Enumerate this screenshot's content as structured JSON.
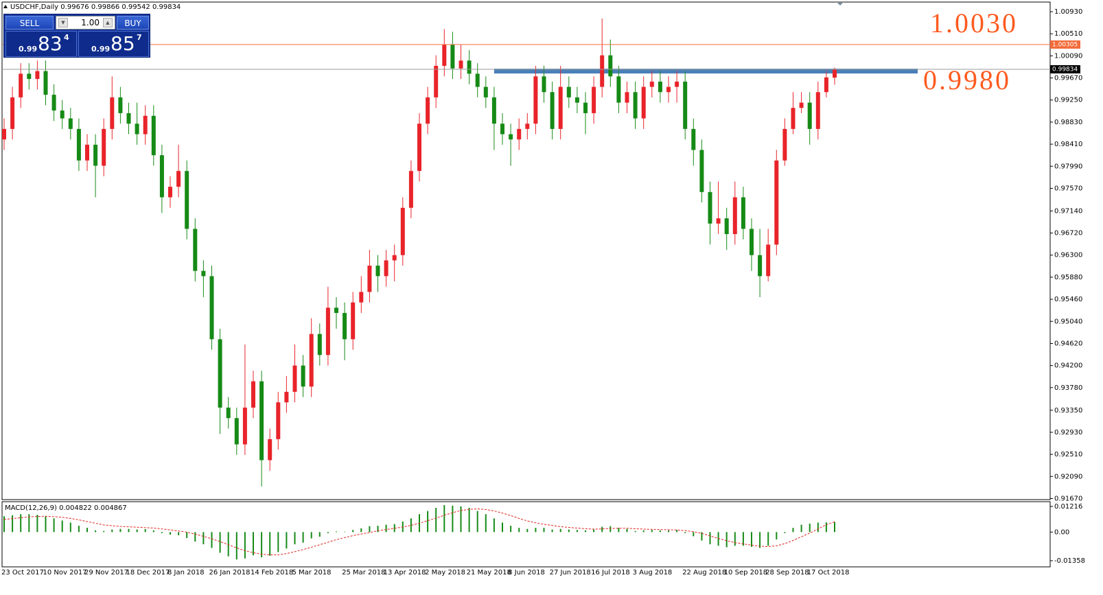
{
  "chart_data": {
    "type": "candlestick",
    "title": "USDCHF,Daily",
    "categories": [
      "23 Oct 2017",
      null,
      null,
      null,
      null,
      "10 Nov 2017",
      null,
      null,
      null,
      null,
      "29 Nov 2017",
      null,
      null,
      null,
      null,
      "18 Dec 2017",
      null,
      null,
      null,
      null,
      "8 Jan 2018",
      null,
      null,
      null,
      null,
      "26 Jan 2018",
      null,
      null,
      null,
      null,
      "14 Feb 2018",
      null,
      null,
      null,
      null,
      "5 Mar 2018",
      null,
      null,
      null,
      null,
      null,
      "25 Mar 2018",
      null,
      null,
      null,
      null,
      "13 Apr 2018",
      null,
      null,
      null,
      null,
      "2 May 2018",
      null,
      null,
      null,
      null,
      "21 May 2018",
      null,
      null,
      null,
      null,
      "8 Jun 2018",
      null,
      null,
      null,
      null,
      "27 Jun 2018",
      null,
      null,
      null,
      null,
      "16 Jul 2018",
      null,
      null,
      null,
      null,
      "3 Aug 2018",
      null,
      null,
      null,
      null,
      null,
      "22 Aug 2018",
      null,
      null,
      null,
      null,
      "10 Sep 2018",
      null,
      null,
      null,
      null,
      "28 Sep 2018",
      null,
      null,
      null,
      null,
      "17 Oct 2018",
      null,
      null,
      null
    ],
    "open": [
      0.985,
      0.987,
      0.993,
      0.9975,
      0.9965,
      0.998,
      0.9935,
      0.9905,
      0.989,
      0.987,
      0.981,
      0.984,
      0.98,
      0.987,
      0.993,
      0.99,
      0.988,
      0.986,
      0.9895,
      0.982,
      0.974,
      0.976,
      0.979,
      0.968,
      0.96,
      0.959,
      0.947,
      0.934,
      0.932,
      0.927,
      0.934,
      0.939,
      0.924,
      0.928,
      0.935,
      0.937,
      0.942,
      0.938,
      0.948,
      0.944,
      0.953,
      0.952,
      0.947,
      0.954,
      0.956,
      0.961,
      0.959,
      0.962,
      0.963,
      0.972,
      0.979,
      0.988,
      0.993,
      0.999,
      1.003,
      0.9985,
      1.0,
      0.9975,
      0.995,
      0.993,
      0.988,
      0.986,
      0.985,
      0.987,
      0.988,
      0.997,
      0.994,
      0.987,
      0.995,
      0.993,
      0.992,
      0.99,
      0.995,
      1.001,
      0.997,
      0.992,
      0.994,
      0.989,
      0.995,
      0.996,
      0.994,
      0.995,
      0.996,
      0.987,
      0.983,
      0.975,
      0.969,
      0.97,
      0.967,
      0.974,
      0.968,
      0.963,
      0.959,
      0.965,
      0.981,
      0.987,
      0.991,
      0.992,
      0.987,
      0.994,
      0.99676
    ],
    "high": [
      0.989,
      0.995,
      0.9995,
      0.9995,
      1.0,
      1.0,
      0.9955,
      0.9925,
      0.991,
      0.989,
      0.986,
      0.986,
      0.989,
      0.997,
      0.995,
      0.992,
      0.992,
      0.9915,
      0.9915,
      0.984,
      0.978,
      0.984,
      0.981,
      0.97,
      0.962,
      0.961,
      0.949,
      0.936,
      0.934,
      0.946,
      0.941,
      0.941,
      0.93,
      0.937,
      0.94,
      0.946,
      0.944,
      0.951,
      0.95,
      0.957,
      0.955,
      0.954,
      0.956,
      0.959,
      0.964,
      0.963,
      0.964,
      0.965,
      0.974,
      0.981,
      0.99,
      0.995,
      1.001,
      1.006,
      1.0055,
      1.003,
      1.002,
      0.9995,
      0.997,
      0.995,
      0.99,
      0.988,
      0.989,
      0.99,
      0.999,
      0.999,
      0.996,
      0.999,
      0.997,
      0.995,
      0.994,
      0.997,
      1.008,
      1.004,
      0.999,
      0.996,
      0.996,
      0.997,
      0.998,
      0.998,
      0.997,
      0.998,
      0.998,
      0.989,
      0.985,
      0.977,
      0.977,
      0.972,
      0.977,
      0.976,
      0.97,
      0.968,
      0.968,
      0.983,
      0.989,
      0.994,
      0.994,
      0.994,
      0.996,
      0.998,
      0.99866
    ],
    "low": [
      0.983,
      0.985,
      0.991,
      0.9945,
      0.9945,
      0.9915,
      0.9885,
      0.987,
      0.985,
      0.979,
      0.979,
      0.974,
      0.978,
      0.985,
      0.988,
      0.986,
      0.984,
      0.984,
      0.98,
      0.971,
      0.972,
      0.974,
      0.966,
      0.958,
      0.955,
      0.945,
      0.929,
      0.93,
      0.925,
      0.925,
      0.932,
      0.919,
      0.922,
      0.926,
      0.933,
      0.935,
      0.936,
      0.936,
      0.942,
      0.942,
      0.949,
      0.943,
      0.945,
      0.952,
      0.954,
      0.956,
      0.957,
      0.958,
      0.961,
      0.97,
      0.977,
      0.986,
      0.991,
      0.997,
      0.9965,
      0.9965,
      0.9955,
      0.993,
      0.991,
      0.983,
      0.984,
      0.98,
      0.983,
      0.985,
      0.986,
      0.992,
      0.985,
      0.985,
      0.991,
      0.99,
      0.986,
      0.988,
      0.993,
      0.995,
      0.99,
      0.99,
      0.987,
      0.987,
      0.993,
      0.992,
      0.992,
      0.992,
      0.985,
      0.98,
      0.973,
      0.965,
      0.967,
      0.964,
      0.965,
      0.966,
      0.96,
      0.955,
      0.958,
      0.963,
      0.98,
      0.986,
      0.99,
      0.984,
      0.985,
      0.993,
      0.99542
    ],
    "close": [
      0.987,
      0.993,
      0.9975,
      0.9965,
      0.998,
      0.9935,
      0.9905,
      0.989,
      0.987,
      0.981,
      0.984,
      0.98,
      0.987,
      0.993,
      0.99,
      0.988,
      0.986,
      0.9895,
      0.982,
      0.974,
      0.976,
      0.979,
      0.968,
      0.96,
      0.959,
      0.947,
      0.934,
      0.932,
      0.927,
      0.934,
      0.939,
      0.924,
      0.928,
      0.935,
      0.937,
      0.942,
      0.938,
      0.948,
      0.944,
      0.953,
      0.952,
      0.947,
      0.954,
      0.956,
      0.961,
      0.959,
      0.962,
      0.963,
      0.972,
      0.979,
      0.988,
      0.993,
      0.999,
      1.003,
      0.9985,
      1.0,
      0.9975,
      0.995,
      0.993,
      0.988,
      0.986,
      0.985,
      0.987,
      0.988,
      0.997,
      0.994,
      0.987,
      0.995,
      0.993,
      0.992,
      0.99,
      0.995,
      1.001,
      0.997,
      0.992,
      0.994,
      0.989,
      0.995,
      0.996,
      0.994,
      0.995,
      0.996,
      0.987,
      0.983,
      0.975,
      0.969,
      0.97,
      0.967,
      0.974,
      0.968,
      0.963,
      0.959,
      0.965,
      0.981,
      0.987,
      0.991,
      0.992,
      0.987,
      0.994,
      0.9968,
      0.99834
    ],
    "up_color": "#e8242a",
    "down_color": "#168a16",
    "ylim": [
      0.9165,
      1.011
    ],
    "yticks": [
      {
        "value": 1.0093,
        "label": "1.00930"
      },
      {
        "value": 1.0051,
        "label": "1.00510"
      },
      {
        "value": 1.0009,
        "label": "1.00090"
      },
      {
        "value": 0.9967,
        "label": "0.99670"
      },
      {
        "value": 0.9925,
        "label": "0.99250"
      },
      {
        "value": 0.9883,
        "label": "0.98830"
      },
      {
        "value": 0.9841,
        "label": "0.98410"
      },
      {
        "value": 0.9799,
        "label": "0.97990"
      },
      {
        "value": 0.9757,
        "label": "0.97570"
      },
      {
        "value": 0.9714,
        "label": "0.97140"
      },
      {
        "value": 0.9672,
        "label": "0.96720"
      },
      {
        "value": 0.963,
        "label": "0.96300"
      },
      {
        "value": 0.9588,
        "label": "0.95880"
      },
      {
        "value": 0.9546,
        "label": "0.95460"
      },
      {
        "value": 0.9504,
        "label": "0.95040"
      },
      {
        "value": 0.9462,
        "label": "0.94620"
      },
      {
        "value": 0.942,
        "label": "0.94200"
      },
      {
        "value": 0.9378,
        "label": "0.93780"
      },
      {
        "value": 0.9335,
        "label": "0.93350"
      },
      {
        "value": 0.9293,
        "label": "0.92930"
      },
      {
        "value": 0.9251,
        "label": "0.92510"
      },
      {
        "value": 0.9209,
        "label": "0.92090"
      },
      {
        "value": 0.9167,
        "label": "0.91670"
      }
    ],
    "levels": [
      {
        "value": 1.00305,
        "color": "#f26b3a"
      }
    ],
    "bid_line_color": "#9a9a9a",
    "resistance": {
      "value": 0.998,
      "x_range": [
        59,
        110
      ],
      "color": "#4a80b8"
    },
    "annotations": [
      "1.0030",
      "0.9980"
    ],
    "macd": {
      "title": "MACD(12,26,9)",
      "histogram": [
        0.0075,
        0.008,
        0.0085,
        0.0085,
        0.0082,
        0.0075,
        0.0065,
        0.0055,
        0.0045,
        0.003,
        0.002,
        0.0008,
        0.0005,
        0.0012,
        0.0015,
        0.0015,
        0.0012,
        0.0014,
        0.0008,
        -0.0005,
        -0.0012,
        -0.0015,
        -0.0028,
        -0.0045,
        -0.0058,
        -0.0075,
        -0.0098,
        -0.0115,
        -0.013,
        -0.0125,
        -0.011,
        -0.012,
        -0.0112,
        -0.0095,
        -0.0078,
        -0.0058,
        -0.005,
        -0.003,
        -0.0022,
        -0.0005,
        0.0003,
        0.0002,
        0.001,
        0.0018,
        0.0028,
        0.003,
        0.0035,
        0.0038,
        0.005,
        0.0065,
        0.0085,
        0.01,
        0.0115,
        0.0128,
        0.0125,
        0.0122,
        0.0115,
        0.01,
        0.0085,
        0.0065,
        0.0045,
        0.003,
        0.002,
        0.0015,
        0.002,
        0.002,
        0.0012,
        0.0015,
        0.0012,
        0.001,
        0.0008,
        0.0012,
        0.0025,
        0.0028,
        0.002,
        0.0015,
        0.0005,
        0.0008,
        0.001,
        0.0008,
        0.0008,
        0.001,
        -0.0005,
        -0.002,
        -0.004,
        -0.0058,
        -0.0065,
        -0.0072,
        -0.0065,
        -0.0065,
        -0.007,
        -0.0075,
        -0.0065,
        -0.0035,
        -0.0005,
        0.002,
        0.0035,
        0.004,
        0.0045,
        0.0046,
        0.004822
      ],
      "signal": [
        0.006,
        0.0064,
        0.0068,
        0.0072,
        0.0074,
        0.0075,
        0.0073,
        0.007,
        0.0065,
        0.0058,
        0.005,
        0.0042,
        0.0034,
        0.003,
        0.0027,
        0.0025,
        0.0023,
        0.0021,
        0.0019,
        0.0015,
        0.001,
        0.0005,
        0.0,
        -0.001,
        -0.002,
        -0.0032,
        -0.0045,
        -0.006,
        -0.0075,
        -0.0088,
        -0.0098,
        -0.0105,
        -0.0108,
        -0.0108,
        -0.0102,
        -0.0093,
        -0.0083,
        -0.0072,
        -0.006,
        -0.0048,
        -0.0036,
        -0.0026,
        -0.0017,
        -0.0009,
        -0.0002,
        0.0006,
        0.0012,
        0.0018,
        0.0024,
        0.0032,
        0.0042,
        0.0054,
        0.0066,
        0.008,
        0.0092,
        0.0102,
        0.0108,
        0.011,
        0.0107,
        0.01,
        0.009,
        0.0078,
        0.0065,
        0.0053,
        0.0044,
        0.0037,
        0.0031,
        0.0026,
        0.0022,
        0.0019,
        0.0016,
        0.0014,
        0.0015,
        0.0017,
        0.0018,
        0.0018,
        0.0016,
        0.0014,
        0.0013,
        0.0012,
        0.0011,
        0.001,
        0.0007,
        0.0002,
        -0.0006,
        -0.0018,
        -0.003,
        -0.0041,
        -0.005,
        -0.0056,
        -0.0062,
        -0.0067,
        -0.0069,
        -0.0065,
        -0.0055,
        -0.004,
        -0.0022,
        -0.0005,
        0.0015,
        0.0035,
        0.004867
      ],
      "histogram_color": "#168a16",
      "signal_color": "#e0201a",
      "ylim": [
        -0.0165,
        0.0141
      ],
      "yticks": [
        0.01216,
        {
          "value": 0,
          "label": "0.00"
        },
        -0.01358
      ]
    }
  },
  "trade_panel": {
    "sell": "SELL",
    "buy": "BUY",
    "lot": "1.00",
    "bid": {
      "small": "0.99",
      "big": "83",
      "pip": "4"
    },
    "ask": {
      "small": "0.99",
      "big": "85",
      "pip": "7"
    }
  }
}
